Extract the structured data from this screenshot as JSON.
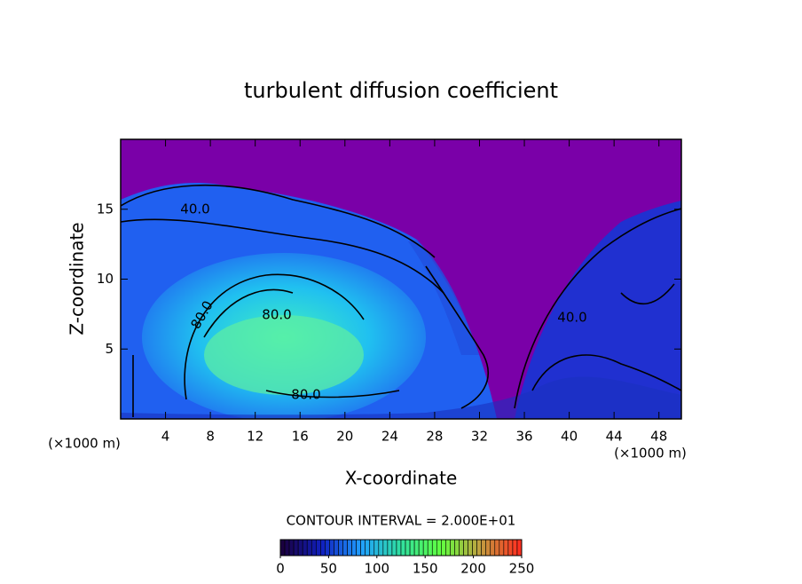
{
  "chart_data": {
    "type": "contour",
    "title": "turbulent diffusion coefficient",
    "x_label": "X-coordinate",
    "y_label": "Z-coordinate",
    "x_unit_labels": [
      "(×1000 m)",
      "(×1000 m)"
    ],
    "xlim": [
      0,
      50
    ],
    "xticks": [
      4,
      8,
      12,
      16,
      20,
      24,
      28,
      32,
      36,
      40,
      44,
      48
    ],
    "ylim": [
      0,
      20
    ],
    "yticks": [
      5,
      10,
      15
    ],
    "contour_labels": [
      "40.0",
      "80.0",
      "80.0",
      "80.0",
      "40.0"
    ],
    "contour_interval_label": "CONTOUR INTERVAL = 2.000E+01",
    "colorbar": {
      "lim": [
        0,
        250
      ],
      "ticks": [
        0,
        50,
        100,
        150,
        200,
        250
      ],
      "colors": [
        "#1a0040",
        "#1020c0",
        "#20a0ff",
        "#30e0a0",
        "#60ff40",
        "#c0a040",
        "#ff3020"
      ]
    }
  }
}
